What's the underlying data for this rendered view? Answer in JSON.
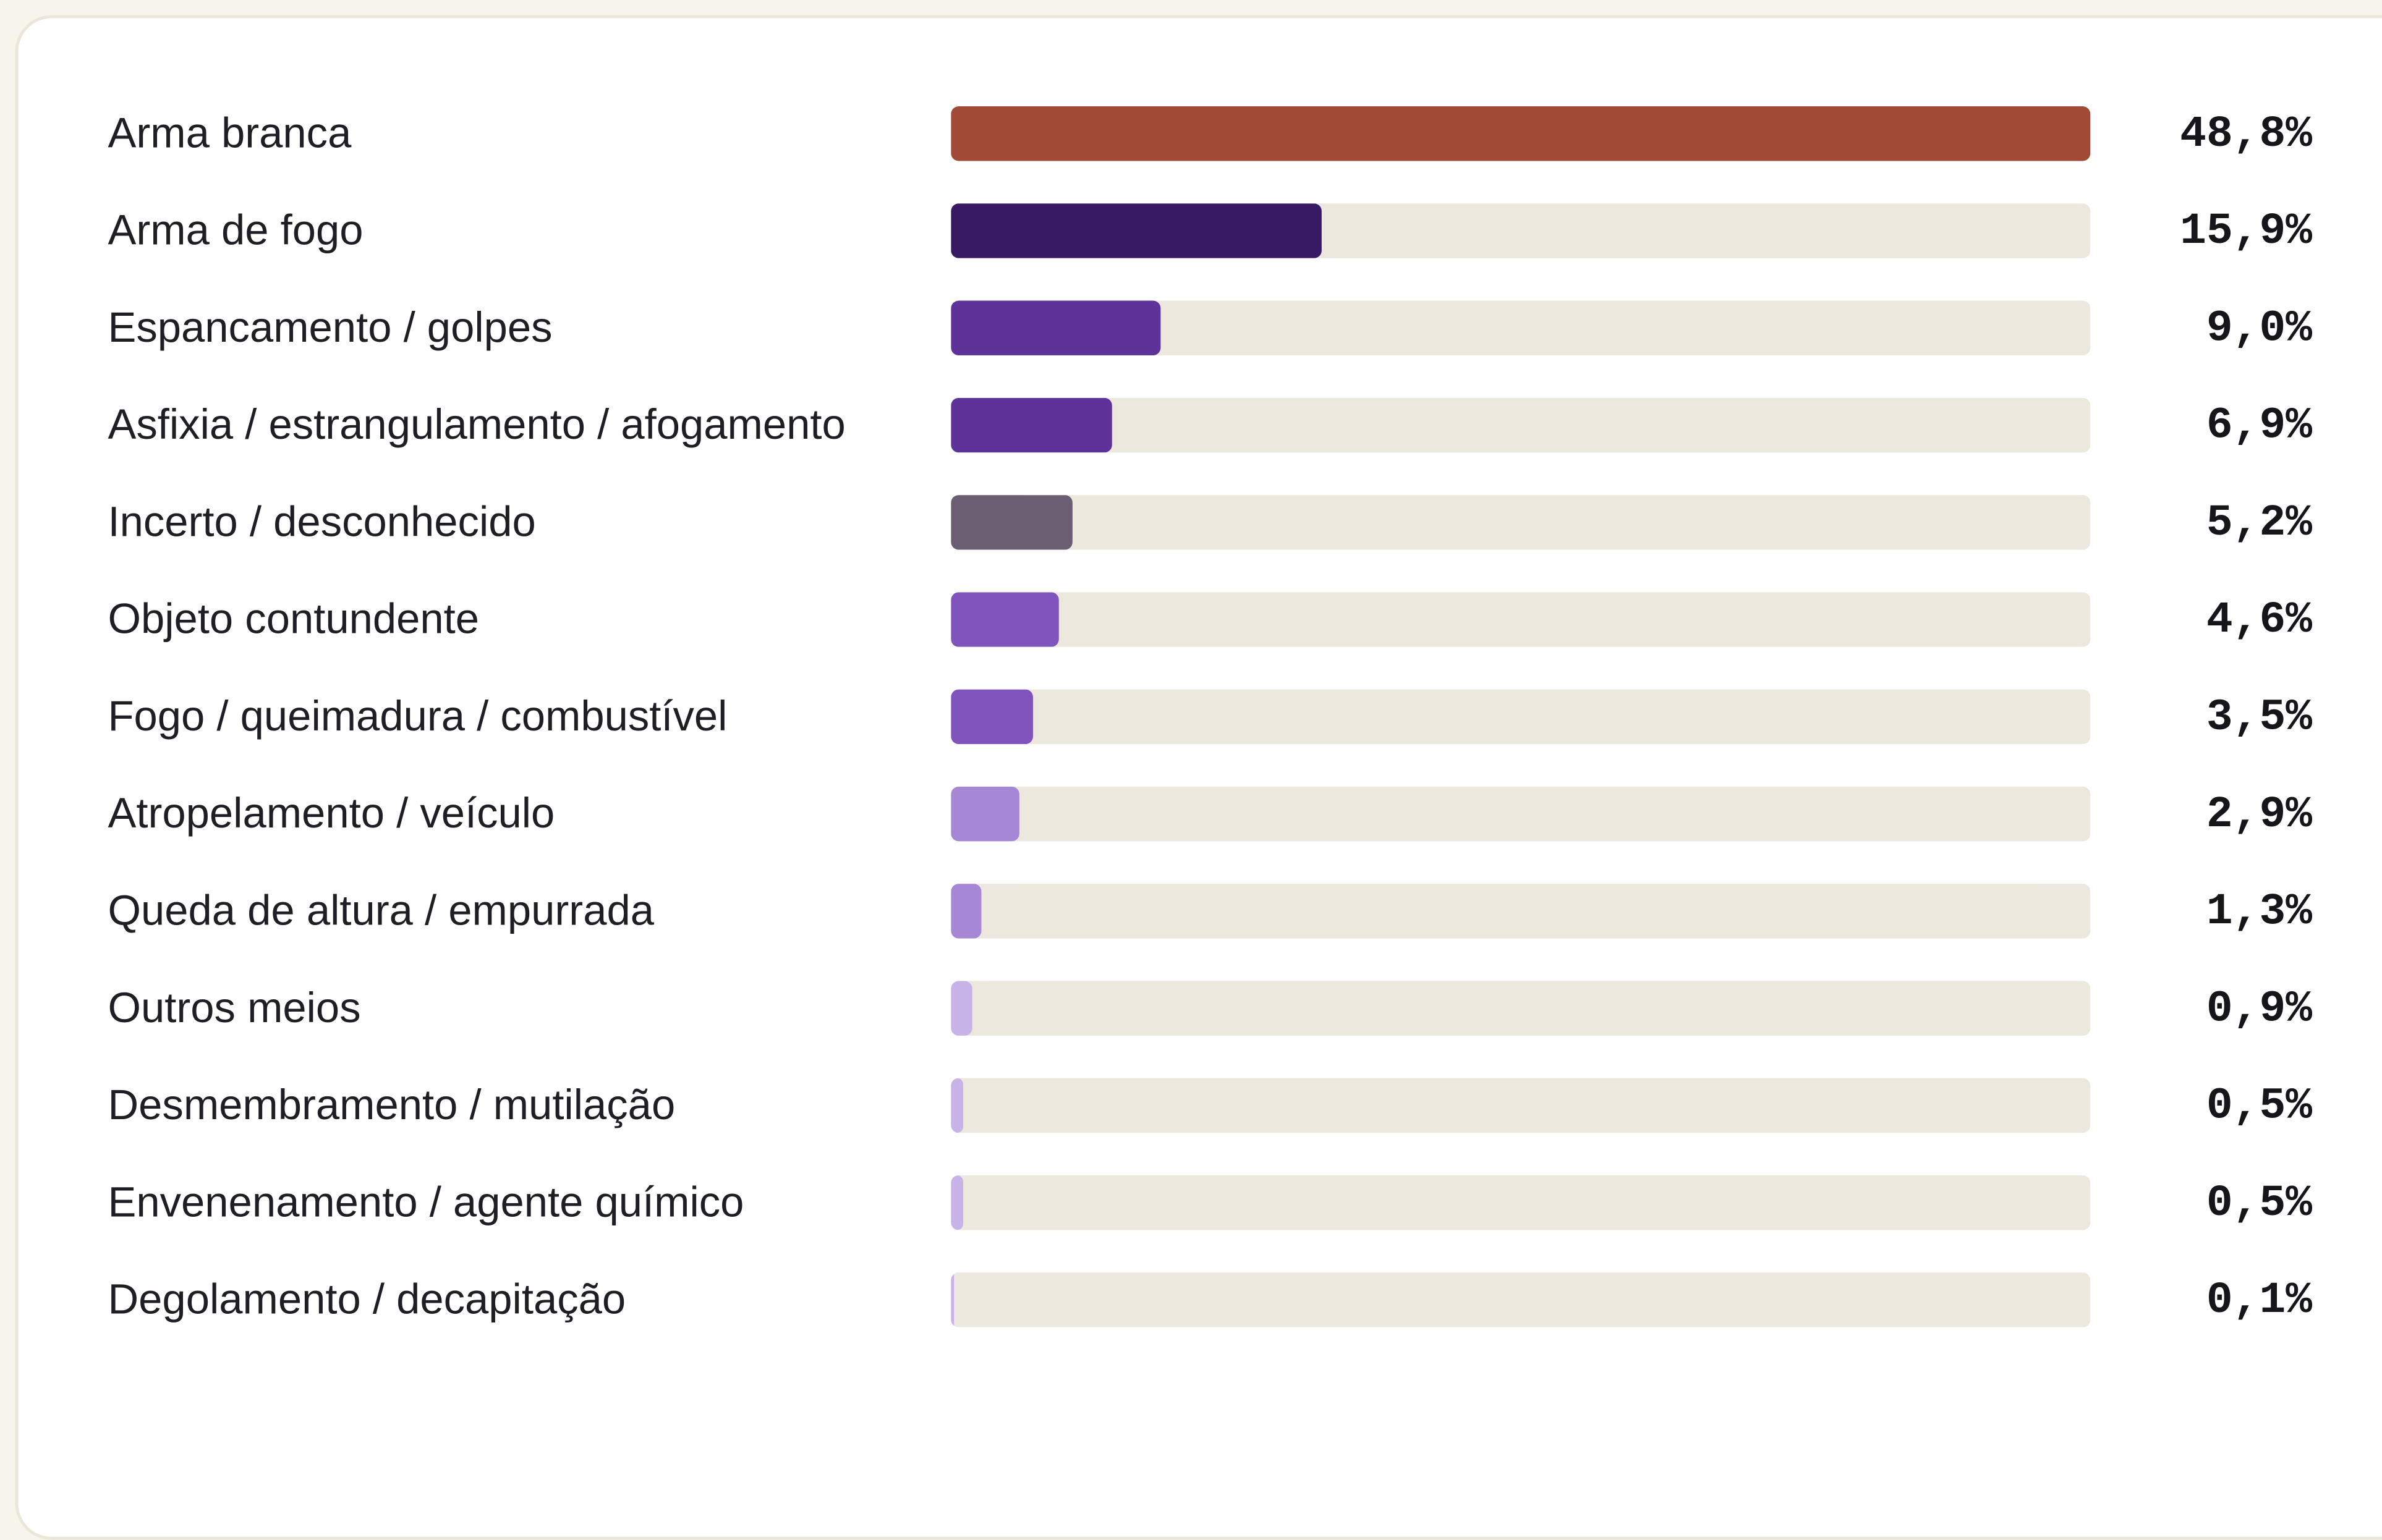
{
  "chart_data": {
    "type": "bar",
    "categories": [
      "Arma branca",
      "Arma de fogo",
      "Espancamento / golpes",
      "Asfixia / estrangulamento / afogamento",
      "Incerto / desconhecido",
      "Objeto contundente",
      "Fogo / queimadura / combustível",
      "Atropelamento / veículo",
      "Queda de altura / empurrada",
      "Outros meios",
      "Desmembramento / mutilação",
      "Envenenamento / agente químico",
      "Degolamento / decapitação"
    ],
    "values": [
      48.8,
      15.9,
      9.0,
      6.9,
      5.2,
      4.6,
      3.5,
      2.9,
      1.3,
      0.9,
      0.5,
      0.5,
      0.1
    ],
    "value_labels": [
      "48,8%",
      "15,9%",
      "9,0%",
      "6,9%",
      "5,2%",
      "4,6%",
      "3,5%",
      "2,9%",
      "1,3%",
      "0,9%",
      "0,5%",
      "0,5%",
      "0,1%"
    ],
    "colors": [
      "#a14a36",
      "#371a63",
      "#5e3399",
      "#5e3399",
      "#6b5e73",
      "#7f55bd",
      "#7f55bd",
      "#a687d6",
      "#a687d6",
      "#c7b3e8",
      "#c7b3e8",
      "#c7b3e8",
      "#c7b3e8"
    ],
    "xlim": [
      0,
      48.8
    ]
  }
}
